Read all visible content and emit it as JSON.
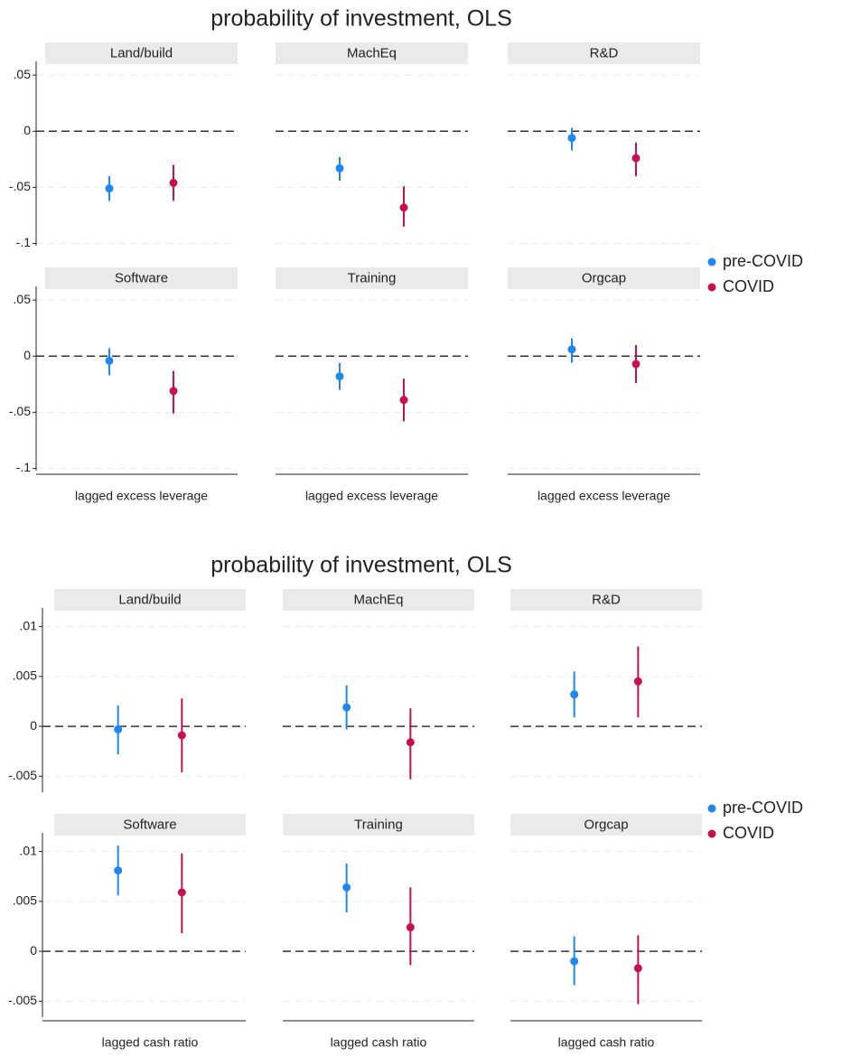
{
  "chart_data": [
    {
      "type": "coefplot",
      "title": "probability of investment, OLS",
      "xlabel": "lagged excess leverage",
      "panels": [
        "Land/build",
        "MachEq",
        "R&D",
        "Software",
        "Training",
        "Orgcap"
      ],
      "ylim": [
        -0.102,
        0.059
      ],
      "yticks": [
        {
          "value": 0.05,
          "label": ".05"
        },
        0,
        {
          "value": -0.05,
          "label": "-.05"
        },
        {
          "value": -0.1,
          "label": "-.1"
        }
      ],
      "grid": true,
      "refline": 0,
      "series": [
        {
          "name": "pre-COVID",
          "color": "#1f88f0",
          "values": [
            -0.051,
            -0.033,
            -0.006,
            -0.004,
            -0.018,
            0.006
          ],
          "lower": [
            -0.062,
            -0.044,
            -0.017,
            -0.017,
            -0.03,
            -0.006
          ],
          "upper": [
            -0.04,
            -0.023,
            0.003,
            0.007,
            -0.006,
            0.016
          ]
        },
        {
          "name": "COVID",
          "color": "#c8104f",
          "values": [
            -0.046,
            -0.068,
            -0.024,
            -0.031,
            -0.039,
            -0.007
          ],
          "lower": [
            -0.062,
            -0.085,
            -0.04,
            -0.051,
            -0.058,
            -0.024
          ],
          "upper": [
            -0.03,
            -0.049,
            -0.01,
            -0.013,
            -0.02,
            0.01
          ]
        }
      ]
    },
    {
      "type": "coefplot",
      "title": "probability of investment, OLS",
      "xlabel": "lagged cash ratio",
      "panels": [
        "Land/build",
        "MachEq",
        "R&D",
        "Software",
        "Training",
        "Orgcap"
      ],
      "ylim": [
        -0.0066,
        0.0115
      ],
      "yticks": [
        {
          "value": 0.01,
          "label": ".01"
        },
        {
          "value": 0.005,
          "label": ".005"
        },
        0,
        {
          "value": -0.005,
          "label": "-.005"
        }
      ],
      "grid": true,
      "refline": 0,
      "series": [
        {
          "name": "pre-COVID",
          "color": "#1f88f0",
          "values": [
            -0.0003,
            0.0019,
            0.0032,
            0.0081,
            0.0064,
            -0.001
          ],
          "lower": [
            -0.0028,
            -0.0003,
            0.0009,
            0.0056,
            0.0039,
            -0.0034
          ],
          "upper": [
            0.0021,
            0.0041,
            0.0055,
            0.0106,
            0.0088,
            0.0015
          ]
        },
        {
          "name": "COVID",
          "color": "#c8104f",
          "values": [
            -0.0009,
            -0.0016,
            0.0045,
            0.0059,
            0.0024,
            -0.0017
          ],
          "lower": [
            -0.0046,
            -0.0053,
            0.0009,
            0.0018,
            -0.0014,
            -0.0053
          ],
          "upper": [
            0.0028,
            0.0018,
            0.008,
            0.0098,
            0.0064,
            0.0016
          ]
        }
      ]
    }
  ]
}
